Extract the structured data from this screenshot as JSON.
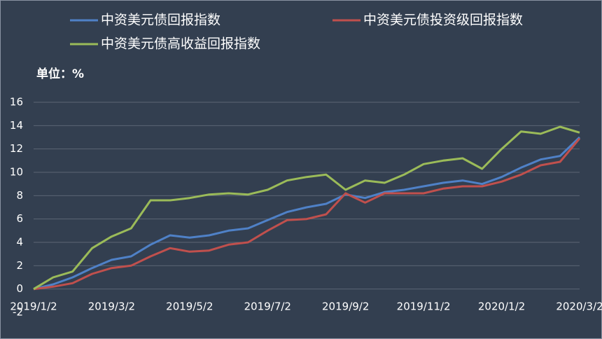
{
  "chart_data": {
    "type": "line",
    "ylabel": "单位：%",
    "categories": [
      "2019/1/2",
      null,
      null,
      null,
      "2019/3/2",
      null,
      null,
      null,
      "2019/5/2",
      null,
      null,
      null,
      "2019/7/2",
      null,
      null,
      null,
      "2019/9/2",
      null,
      null,
      null,
      "2019/11/2",
      null,
      null,
      null,
      "2020/1/2",
      null,
      null,
      null,
      "2020/3/2"
    ],
    "series": [
      {
        "name": "中资美元债回报指数",
        "color": "#4f81c7",
        "values": [
          0,
          0.4,
          1.0,
          1.8,
          2.5,
          2.8,
          3.8,
          4.6,
          4.4,
          4.6,
          5.0,
          5.2,
          5.9,
          6.6,
          7.0,
          7.3,
          8.1,
          7.8,
          8.3,
          8.5,
          8.8,
          9.1,
          9.3,
          9.0,
          9.6,
          10.4,
          11.1,
          11.4,
          13.0
        ]
      },
      {
        "name": "中资美元债投资级回报指数",
        "color": "#c0504d",
        "values": [
          0,
          0.2,
          0.5,
          1.3,
          1.8,
          2.0,
          2.8,
          3.5,
          3.2,
          3.3,
          3.8,
          4.0,
          5.0,
          5.9,
          6.0,
          6.4,
          8.2,
          7.4,
          8.2,
          8.2,
          8.2,
          8.6,
          8.8,
          8.8,
          9.2,
          9.8,
          10.6,
          10.9,
          12.9
        ]
      },
      {
        "name": "中资美元债高收益回报指数",
        "color": "#9bbb59",
        "values": [
          0,
          1.0,
          1.5,
          3.5,
          4.5,
          5.2,
          7.6,
          7.6,
          7.8,
          8.1,
          8.2,
          8.1,
          8.5,
          9.3,
          9.6,
          9.8,
          8.5,
          9.3,
          9.1,
          9.8,
          10.7,
          11.0,
          11.2,
          10.3,
          12.0,
          13.5,
          13.3,
          13.9,
          13.4
        ]
      }
    ],
    "ylim": [
      -2,
      16
    ],
    "yticks": [
      -2,
      0,
      2,
      4,
      6,
      8,
      10,
      12,
      14,
      16
    ],
    "grid": true
  }
}
